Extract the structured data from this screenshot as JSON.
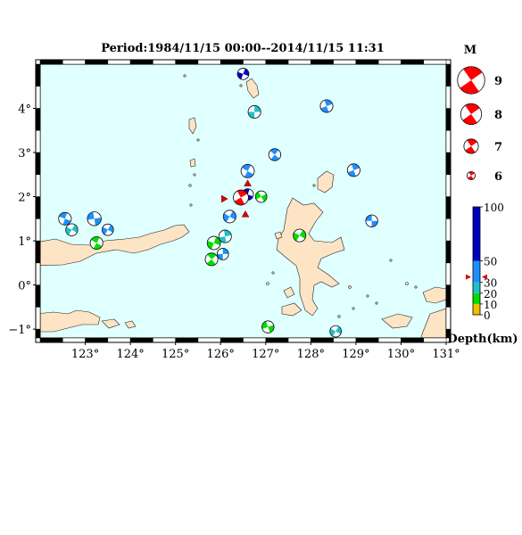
{
  "title": "Period:1984/11/15 00:00--2014/11/15 11:31",
  "map": {
    "lon_range": [
      122,
      131
    ],
    "lat_range": [
      -1.2,
      5
    ],
    "lon_ticks": [
      {
        "value": 123,
        "label": "123°"
      },
      {
        "value": 124,
        "label": "124°"
      },
      {
        "value": 125,
        "label": "125°"
      },
      {
        "value": 126,
        "label": "126°"
      },
      {
        "value": 127,
        "label": "127°"
      },
      {
        "value": 128,
        "label": "128°"
      },
      {
        "value": 129,
        "label": "129°"
      },
      {
        "value": 130,
        "label": "130°"
      },
      {
        "value": 131,
        "label": "131°"
      }
    ],
    "lat_ticks": [
      {
        "value": 4,
        "label": "4°"
      },
      {
        "value": 3,
        "label": "3°"
      },
      {
        "value": 2,
        "label": "2°"
      },
      {
        "value": 1,
        "label": "1°"
      },
      {
        "value": 0,
        "label": "0°"
      },
      {
        "value": -1,
        "label": "−1°"
      }
    ],
    "colors": {
      "sea": "#e0ffff",
      "land": "#fde4c4",
      "coast": "#222222"
    }
  },
  "events": [
    {
      "lon": 126.5,
      "lat": 4.78,
      "mag": 6.6,
      "color": "#0000c0",
      "rot": 110
    },
    {
      "lon": 126.75,
      "lat": 3.92,
      "mag": 6.8,
      "color": "#20c0c8",
      "rot": 270
    },
    {
      "lon": 128.35,
      "lat": 4.05,
      "mag": 6.8,
      "color": "#1e8fff",
      "rot": 250
    },
    {
      "lon": 127.2,
      "lat": 2.95,
      "mag": 6.7,
      "color": "#1e8fff",
      "rot": 220
    },
    {
      "lon": 128.95,
      "lat": 2.6,
      "mag": 6.8,
      "color": "#1e8fff",
      "rot": 70
    },
    {
      "lon": 126.6,
      "lat": 2.58,
      "mag": 6.9,
      "color": "#1e8fff",
      "rot": 30
    },
    {
      "lon": 126.6,
      "lat": 2.05,
      "mag": 6.6,
      "color": "#0000c0",
      "rot": 200
    },
    {
      "lon": 126.9,
      "lat": 2.0,
      "mag": 6.6,
      "color": "#00dd00",
      "rot": 150
    },
    {
      "lon": 126.45,
      "lat": 1.98,
      "mag": 7.2,
      "color": "#ff0000",
      "rot": 240
    },
    {
      "lon": 126.2,
      "lat": 1.55,
      "mag": 6.8,
      "color": "#1e8fff",
      "rot": 300
    },
    {
      "lon": 126.1,
      "lat": 1.1,
      "mag": 6.8,
      "color": "#20c0c8",
      "rot": 260
    },
    {
      "lon": 125.85,
      "lat": 0.95,
      "mag": 6.9,
      "color": "#00dd00",
      "rot": 110
    },
    {
      "lon": 126.05,
      "lat": 0.7,
      "mag": 6.6,
      "color": "#1e8fff",
      "rot": 90
    },
    {
      "lon": 125.8,
      "lat": 0.58,
      "mag": 6.8,
      "color": "#00dd00",
      "rot": 50
    },
    {
      "lon": 122.55,
      "lat": 1.5,
      "mag": 6.8,
      "color": "#1e8fff",
      "rot": 20
    },
    {
      "lon": 122.7,
      "lat": 1.25,
      "mag": 6.7,
      "color": "#20c0c8",
      "rot": 300
    },
    {
      "lon": 123.5,
      "lat": 1.25,
      "mag": 6.6,
      "color": "#1e8fff",
      "rot": 120
    },
    {
      "lon": 123.2,
      "lat": 1.5,
      "mag": 7.0,
      "color": "#1e8fff",
      "rot": 350
    },
    {
      "lon": 123.25,
      "lat": 0.95,
      "mag": 6.8,
      "color": "#00dd00",
      "rot": 30
    },
    {
      "lon": 127.75,
      "lat": 1.12,
      "mag": 6.8,
      "color": "#00dd00",
      "rot": 300
    },
    {
      "lon": 129.35,
      "lat": 1.45,
      "mag": 6.7,
      "color": "#1e8fff",
      "rot": 0
    },
    {
      "lon": 127.05,
      "lat": -0.95,
      "mag": 6.7,
      "color": "#00dd00",
      "rot": 340
    },
    {
      "lon": 128.55,
      "lat": -1.05,
      "mag": 6.6,
      "color": "#20c0c8",
      "rot": 300
    }
  ],
  "markers": [
    {
      "lon": 126.1,
      "lat": 1.95,
      "dir": "right"
    },
    {
      "lon": 126.55,
      "lat": 1.6,
      "dir": "up"
    },
    {
      "lon": 126.6,
      "lat": 2.3,
      "dir": "up"
    }
  ],
  "legend": {
    "title": "M",
    "entries": [
      {
        "label": "9",
        "mag": 9
      },
      {
        "label": "8",
        "mag": 8
      },
      {
        "label": "7",
        "mag": 7
      },
      {
        "label": "6",
        "mag": 6
      }
    ]
  },
  "depth_scale": {
    "label": "Depth(km)",
    "max": 100,
    "ticks": [
      {
        "value": 100,
        "label": "100"
      },
      {
        "value": 50,
        "label": "50"
      },
      {
        "value": 30,
        "label": "30"
      },
      {
        "value": 20,
        "label": "20"
      },
      {
        "value": 10,
        "label": "10"
      },
      {
        "value": 0,
        "label": "0"
      }
    ],
    "bands": [
      {
        "from": 0,
        "to": 10,
        "color": "#f0c000"
      },
      {
        "from": 10,
        "to": 20,
        "color": "#00dd00"
      },
      {
        "from": 20,
        "to": 30,
        "color": "#20c0c8"
      },
      {
        "from": 30,
        "to": 50,
        "color": "#1e8fff"
      },
      {
        "from": 50,
        "to": 100,
        "color": "#0000c0"
      }
    ],
    "marker_value": 35
  }
}
